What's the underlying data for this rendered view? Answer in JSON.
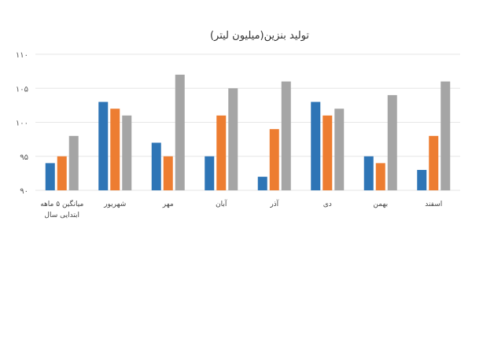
{
  "chart_data": {
    "type": "bar",
    "title": "تولید بنزین(میلیون لیتر)",
    "categories": [
      [
        "میانگین ۵ ماهه",
        "ابتدایی سال"
      ],
      [
        "شهریور"
      ],
      [
        "مهر"
      ],
      [
        "آبان"
      ],
      [
        "آذر"
      ],
      [
        "دی"
      ],
      [
        "بهمن"
      ],
      [
        "اسفند"
      ]
    ],
    "series": [
      {
        "color": "#2e75b6",
        "values": [
          94,
          103,
          97,
          95,
          92,
          103,
          95,
          93
        ]
      },
      {
        "color": "#ed7d31",
        "values": [
          95,
          102,
          95,
          101,
          99,
          101,
          94,
          98
        ]
      },
      {
        "color": "#a5a5a5",
        "values": [
          98,
          101,
          107,
          105,
          106,
          102,
          104,
          106
        ]
      }
    ],
    "ylim": [
      90,
      110
    ],
    "yticks": [
      90,
      95,
      100,
      105,
      110
    ],
    "ytick_labels": [
      "۹۰",
      "۹۵",
      "۱۰۰",
      "۱۰۵",
      "۱۱۰"
    ],
    "grid": true,
    "legend": "none"
  }
}
